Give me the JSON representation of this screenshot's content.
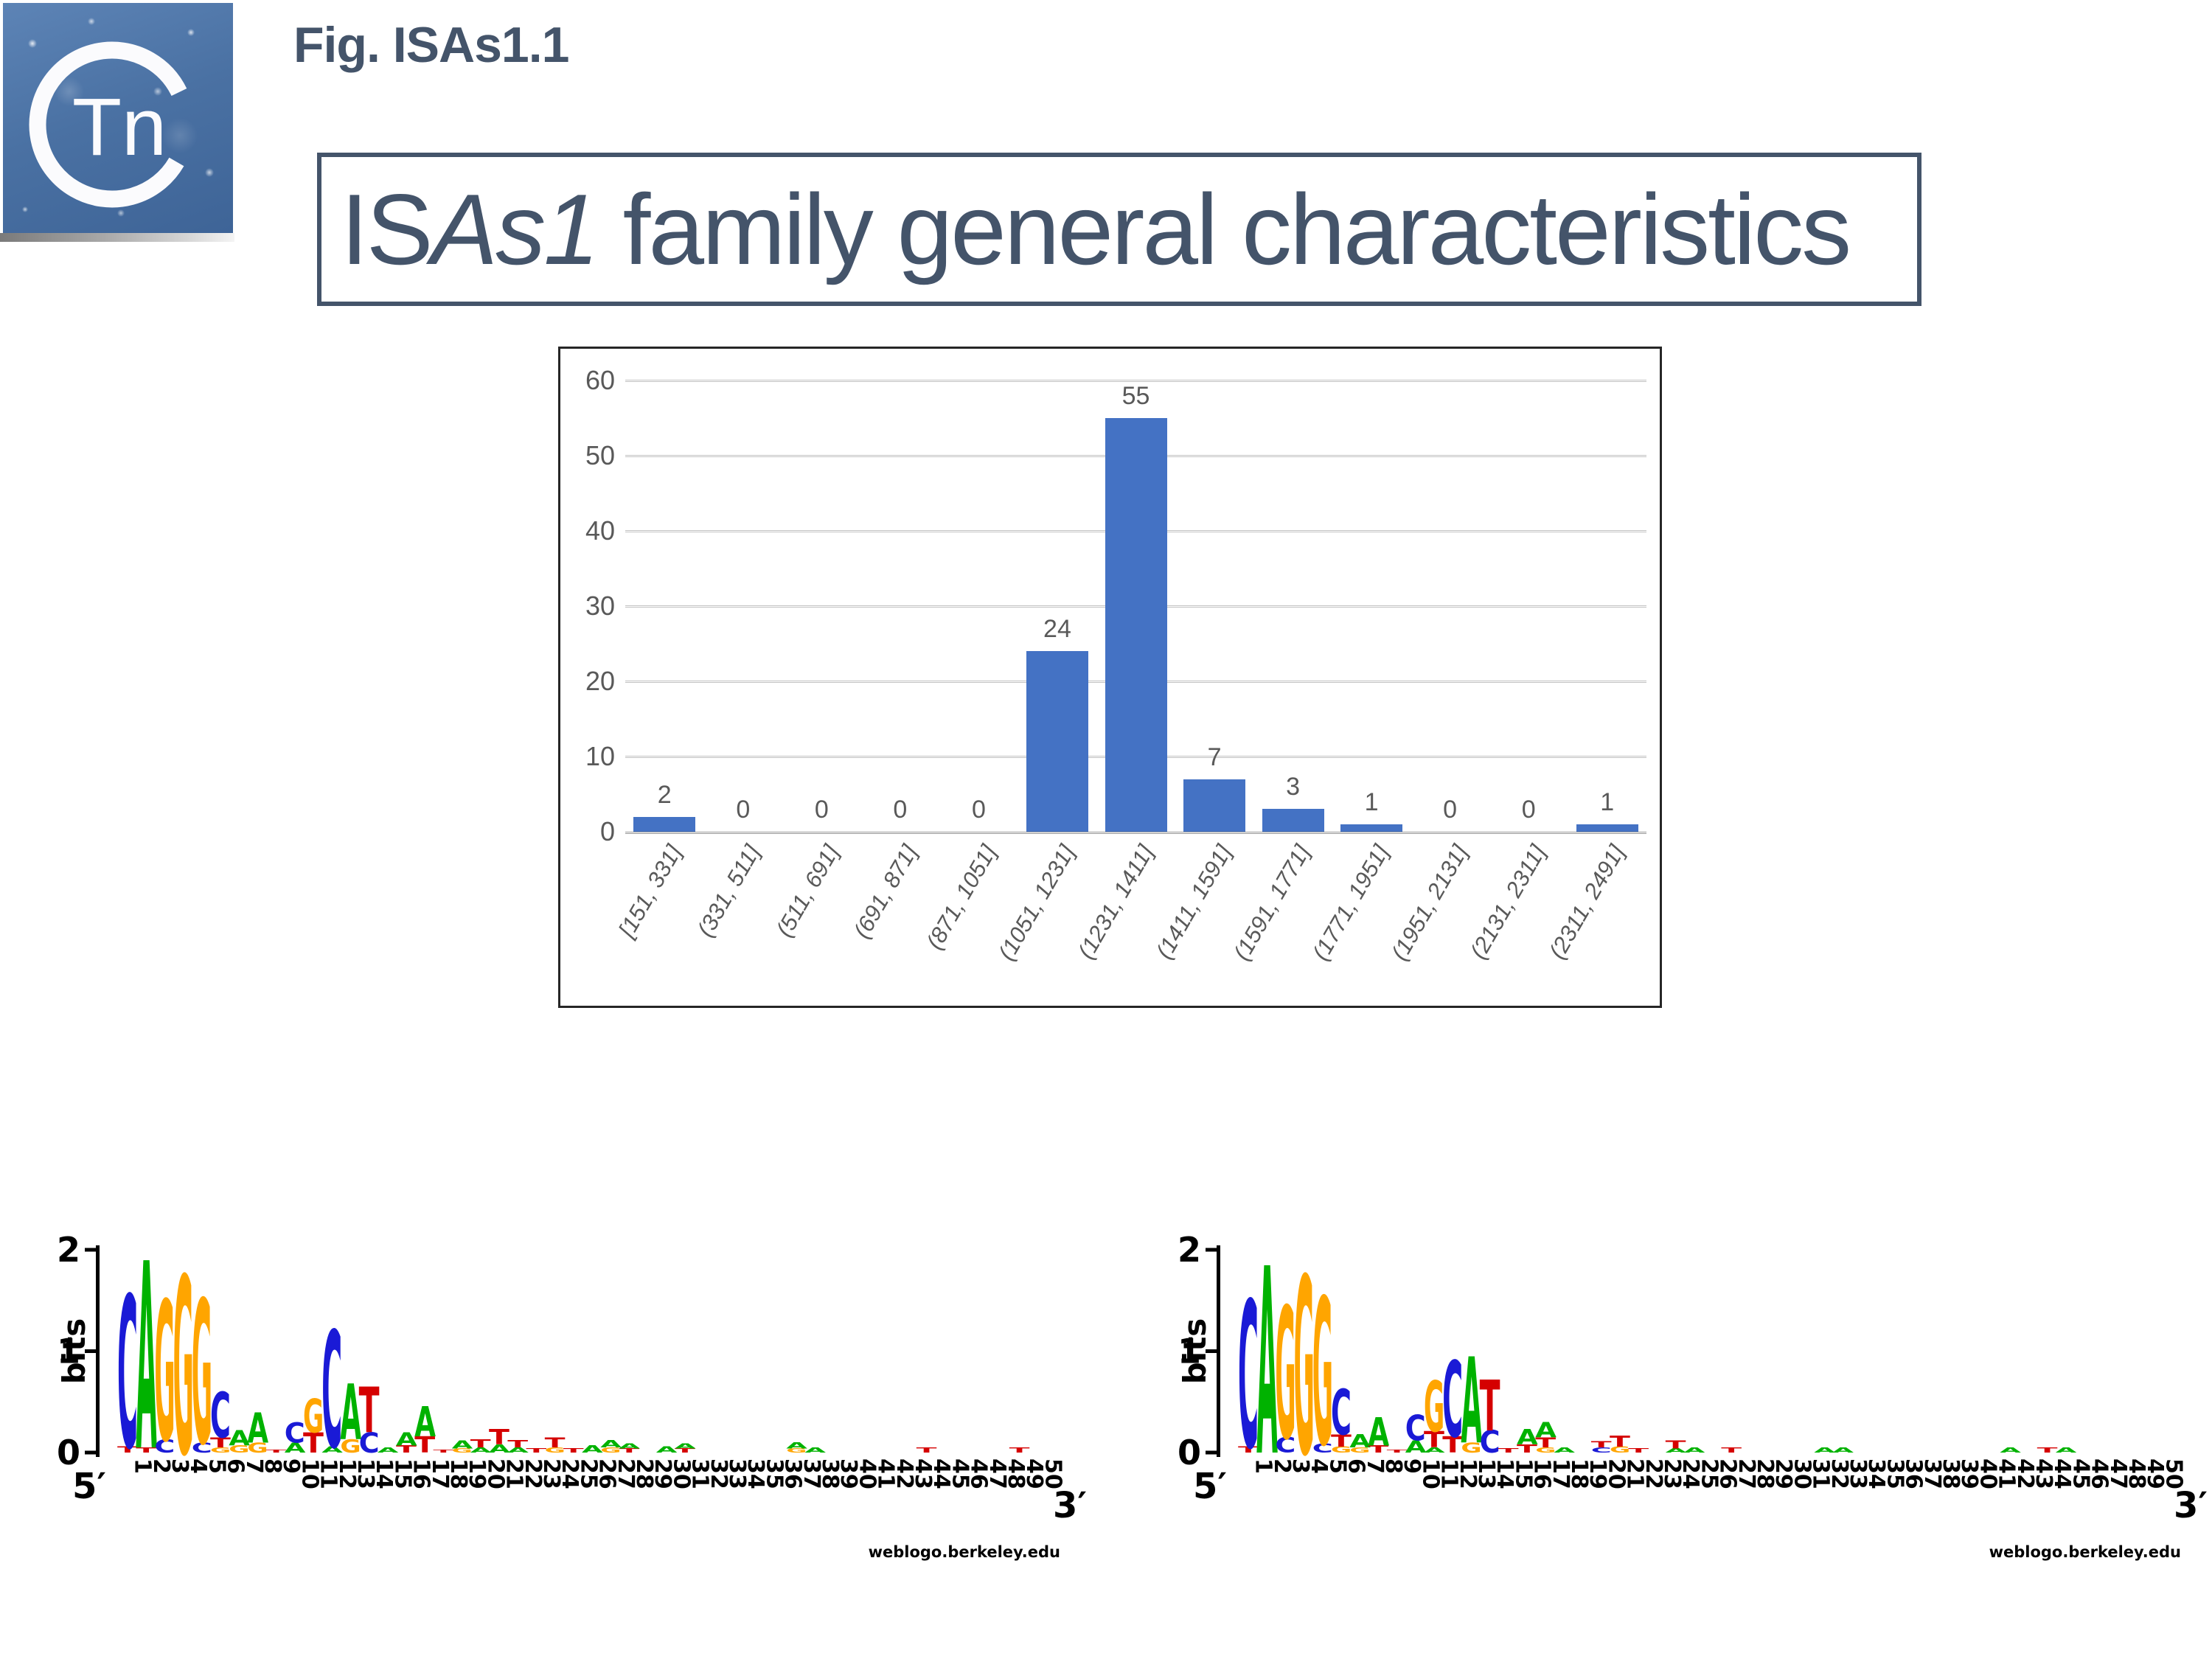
{
  "fig_label": "Fig. ISAs1.1",
  "badge": {
    "tn": "Tn"
  },
  "title": {
    "prefix": "IS",
    "italic": "As1",
    "suffix": " family general characteristics"
  },
  "logo_colors": {
    "A": "#00B200",
    "C": "#1A1AD6",
    "G": "#FFA500",
    "T": "#D50000"
  },
  "chart_data": [
    {
      "type": "bar",
      "title": "",
      "xlabel": "",
      "ylabel": "",
      "categories": [
        "[151, 331]",
        "(331, 511]",
        "(511, 691]",
        "(691, 871]",
        "(871, 1051]",
        "(1051, 1231]",
        "(1231, 1411]",
        "(1411, 1591]",
        "(1591, 1771]",
        "(1771, 1951]",
        "(1951, 2131]",
        "(2131, 2311]",
        "(2311, 2491]"
      ],
      "values": [
        2,
        0,
        0,
        0,
        0,
        24,
        55,
        7,
        3,
        1,
        0,
        0,
        1
      ],
      "ylim": [
        0,
        60
      ],
      "yticks": [
        0,
        10,
        20,
        30,
        40,
        50,
        60
      ],
      "bar_color": "#4472C4",
      "grid": true,
      "legend": "none",
      "data_labels": true
    },
    {
      "type": "sequence_logo",
      "ylabel": "bits",
      "ylim": [
        0,
        2
      ],
      "yticks": [
        0,
        1,
        2
      ],
      "five_prime": "5′",
      "three_prime": "3′",
      "credit": "weblogo.berkeley.edu",
      "positions": [
        [
          [
            "T",
            0.06
          ],
          [
            "C",
            1.5
          ]
        ],
        [
          [
            "T",
            0.05
          ],
          [
            "A",
            1.85
          ]
        ],
        [
          [
            "C",
            0.13
          ],
          [
            "G",
            1.38
          ]
        ],
        [
          [
            "G",
            1.75
          ]
        ],
        [
          [
            "C",
            0.1
          ],
          [
            "G",
            1.42
          ]
        ],
        [
          [
            "G",
            0.05
          ],
          [
            "T",
            0.1
          ],
          [
            "C",
            0.45
          ]
        ],
        [
          [
            "G",
            0.07
          ],
          [
            "A",
            0.15
          ]
        ],
        [
          [
            "G",
            0.1
          ],
          [
            "A",
            0.3
          ]
        ],
        [
          [
            "T",
            0.03
          ]
        ],
        [
          [
            "A",
            0.1
          ],
          [
            "C",
            0.2
          ]
        ],
        [
          [
            "T",
            0.2
          ],
          [
            "G",
            0.33
          ]
        ],
        [
          [
            "A",
            0.06
          ],
          [
            "C",
            1.15
          ]
        ],
        [
          [
            "G",
            0.13
          ],
          [
            "A",
            0.55
          ]
        ],
        [
          [
            "C",
            0.2
          ],
          [
            "T",
            0.45
          ]
        ],
        [
          [
            "A",
            0.05
          ]
        ],
        [
          [
            "T",
            0.07
          ],
          [
            "A",
            0.13
          ]
        ],
        [
          [
            "T",
            0.16
          ],
          [
            "A",
            0.3
          ]
        ],
        [
          [
            "T",
            0.03
          ]
        ],
        [
          [
            "G",
            0.04
          ],
          [
            "A",
            0.08
          ]
        ],
        [
          [
            "A",
            0.05
          ],
          [
            "T",
            0.08
          ]
        ],
        [
          [
            "A",
            0.08
          ],
          [
            "T",
            0.15
          ]
        ],
        [
          [
            "A",
            0.05
          ],
          [
            "T",
            0.07
          ]
        ],
        [
          [
            "T",
            0.04
          ]
        ],
        [
          [
            "G",
            0.05
          ],
          [
            "T",
            0.1
          ]
        ],
        [
          [
            "T",
            0.04
          ]
        ],
        [
          [
            "A",
            0.07
          ]
        ],
        [
          [
            "G",
            0.05
          ],
          [
            "A",
            0.07
          ]
        ],
        [
          [
            "T",
            0.04
          ],
          [
            "A",
            0.05
          ]
        ],
        [],
        [
          [
            "A",
            0.06
          ]
        ],
        [
          [
            "T",
            0.04
          ],
          [
            "A",
            0.05
          ]
        ],
        [],
        [],
        [],
        [],
        [],
        [
          [
            "G",
            0.04
          ],
          [
            "A",
            0.06
          ]
        ],
        [
          [
            "A",
            0.05
          ]
        ],
        [],
        [],
        [],
        [],
        [],
        [
          [
            "T",
            0.05
          ]
        ],
        [],
        [],
        [],
        [],
        [
          [
            "T",
            0.05
          ]
        ],
        []
      ]
    },
    {
      "type": "sequence_logo",
      "ylabel": "bits",
      "ylim": [
        0,
        2
      ],
      "yticks": [
        0,
        1,
        2
      ],
      "five_prime": "5′",
      "three_prime": "3′",
      "credit": "weblogo.berkeley.edu",
      "positions": [
        [
          [
            "T",
            0.06
          ],
          [
            "C",
            1.45
          ]
        ],
        [
          [
            "A",
            1.85
          ]
        ],
        [
          [
            "C",
            0.15
          ],
          [
            "G",
            1.3
          ]
        ],
        [
          [
            "G",
            1.75
          ]
        ],
        [
          [
            "C",
            0.09
          ],
          [
            "G",
            1.45
          ]
        ],
        [
          [
            "G",
            0.06
          ],
          [
            "T",
            0.12
          ],
          [
            "C",
            0.45
          ]
        ],
        [
          [
            "G",
            0.05
          ],
          [
            "A",
            0.13
          ]
        ],
        [
          [
            "T",
            0.07
          ],
          [
            "A",
            0.28
          ]
        ],
        [
          [
            "T",
            0.03
          ]
        ],
        [
          [
            "A",
            0.12
          ],
          [
            "C",
            0.25
          ]
        ],
        [
          [
            "A",
            0.05
          ],
          [
            "T",
            0.16
          ],
          [
            "G",
            0.5
          ]
        ],
        [
          [
            "T",
            0.16
          ],
          [
            "C",
            0.75
          ]
        ],
        [
          [
            "G",
            0.1
          ],
          [
            "A",
            0.85
          ]
        ],
        [
          [
            "C",
            0.22
          ],
          [
            "T",
            0.5
          ]
        ],
        [
          [
            "T",
            0.04
          ]
        ],
        [
          [
            "T",
            0.08
          ],
          [
            "A",
            0.15
          ]
        ],
        [
          [
            "G",
            0.05
          ],
          [
            "T",
            0.1
          ],
          [
            "A",
            0.15
          ]
        ],
        [
          [
            "A",
            0.05
          ]
        ],
        [],
        [
          [
            "C",
            0.05
          ],
          [
            "T",
            0.06
          ]
        ],
        [
          [
            "G",
            0.06
          ],
          [
            "T",
            0.11
          ]
        ],
        [
          [
            "T",
            0.04
          ]
        ],
        [],
        [
          [
            "A",
            0.04
          ],
          [
            "T",
            0.08
          ]
        ],
        [
          [
            "A",
            0.05
          ]
        ],
        [],
        [
          [
            "T",
            0.05
          ]
        ],
        [],
        [],
        [],
        [],
        [
          [
            "A",
            0.05
          ]
        ],
        [
          [
            "A",
            0.05
          ]
        ],
        [],
        [],
        [],
        [],
        [],
        [],
        [],
        [],
        [
          [
            "A",
            0.05
          ]
        ],
        [],
        [
          [
            "T",
            0.05
          ]
        ],
        [
          [
            "A",
            0.05
          ]
        ],
        [],
        [],
        [],
        [],
        []
      ]
    }
  ]
}
